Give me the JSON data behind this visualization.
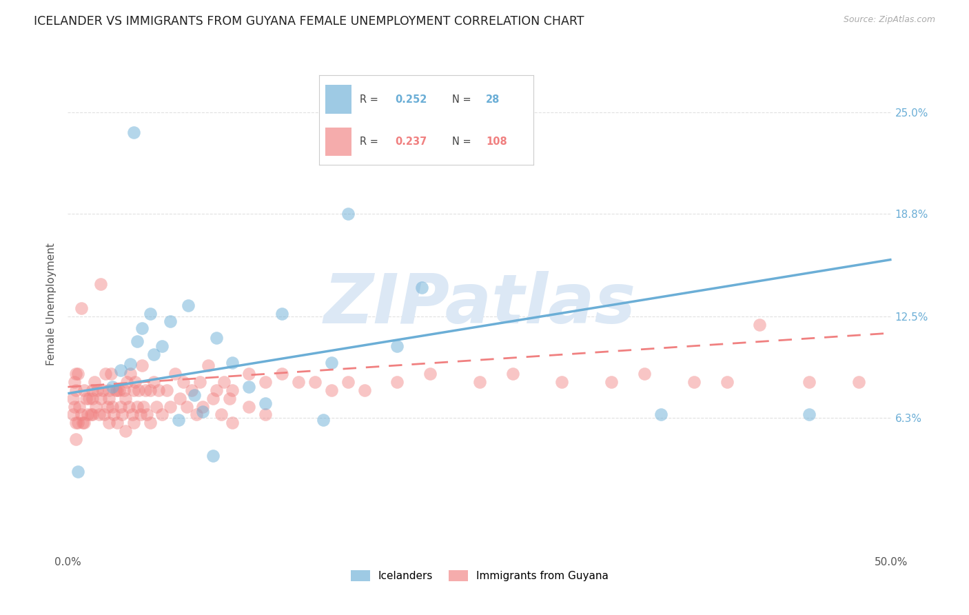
{
  "title": "ICELANDER VS IMMIGRANTS FROM GUYANA FEMALE UNEMPLOYMENT CORRELATION CHART",
  "source": "Source: ZipAtlas.com",
  "ylabel": "Female Unemployment",
  "xlim": [
    0.0,
    0.5
  ],
  "ylim": [
    -0.02,
    0.285
  ],
  "ytick_positions": [
    0.063,
    0.125,
    0.188,
    0.25
  ],
  "ytick_labels": [
    "6.3%",
    "12.5%",
    "18.8%",
    "25.0%"
  ],
  "series1_name": "Icelanders",
  "series1_color": "#6baed6",
  "series2_name": "Immigrants from Guyana",
  "series2_color": "#f08080",
  "watermark": "ZIPatlas",
  "watermark_color": "#dce8f5",
  "background_color": "#ffffff",
  "grid_color": "#cccccc",
  "blue_line": [
    0.0,
    0.5,
    0.078,
    0.16
  ],
  "pink_line": [
    0.0,
    0.5,
    0.082,
    0.115
  ],
  "icelanders_x": [
    0.04,
    0.17,
    0.215,
    0.36,
    0.045,
    0.05,
    0.042,
    0.038,
    0.057,
    0.062,
    0.052,
    0.032,
    0.027,
    0.073,
    0.09,
    0.1,
    0.13,
    0.16,
    0.2,
    0.11,
    0.12,
    0.082,
    0.067,
    0.077,
    0.155,
    0.088,
    0.45,
    0.006
  ],
  "icelanders_y": [
    0.238,
    0.188,
    0.143,
    0.065,
    0.118,
    0.127,
    0.11,
    0.096,
    0.107,
    0.122,
    0.102,
    0.092,
    0.082,
    0.132,
    0.112,
    0.097,
    0.127,
    0.097,
    0.107,
    0.082,
    0.072,
    0.067,
    0.062,
    0.077,
    0.062,
    0.04,
    0.065,
    0.03
  ],
  "guyana_x": [
    0.003,
    0.003,
    0.004,
    0.004,
    0.005,
    0.005,
    0.005,
    0.006,
    0.006,
    0.007,
    0.008,
    0.009,
    0.01,
    0.01,
    0.011,
    0.012,
    0.013,
    0.014,
    0.015,
    0.015,
    0.016,
    0.017,
    0.018,
    0.019,
    0.02,
    0.02,
    0.021,
    0.022,
    0.023,
    0.024,
    0.025,
    0.025,
    0.026,
    0.027,
    0.028,
    0.029,
    0.03,
    0.03,
    0.031,
    0.032,
    0.033,
    0.034,
    0.035,
    0.035,
    0.036,
    0.037,
    0.038,
    0.039,
    0.04,
    0.04,
    0.041,
    0.042,
    0.043,
    0.044,
    0.045,
    0.046,
    0.047,
    0.048,
    0.05,
    0.05,
    0.052,
    0.054,
    0.055,
    0.057,
    0.06,
    0.062,
    0.065,
    0.068,
    0.07,
    0.072,
    0.075,
    0.078,
    0.08,
    0.082,
    0.085,
    0.088,
    0.09,
    0.093,
    0.095,
    0.098,
    0.1,
    0.1,
    0.11,
    0.11,
    0.12,
    0.12,
    0.13,
    0.14,
    0.15,
    0.16,
    0.17,
    0.18,
    0.2,
    0.22,
    0.25,
    0.27,
    0.3,
    0.33,
    0.35,
    0.38,
    0.4,
    0.42,
    0.45,
    0.48,
    0.005,
    0.008,
    0.015,
    0.025
  ],
  "guyana_y": [
    0.075,
    0.065,
    0.085,
    0.07,
    0.06,
    0.08,
    0.05,
    0.09,
    0.06,
    0.07,
    0.13,
    0.06,
    0.08,
    0.06,
    0.075,
    0.065,
    0.075,
    0.065,
    0.075,
    0.065,
    0.085,
    0.07,
    0.08,
    0.065,
    0.145,
    0.075,
    0.08,
    0.065,
    0.09,
    0.07,
    0.08,
    0.06,
    0.09,
    0.07,
    0.065,
    0.08,
    0.08,
    0.06,
    0.08,
    0.07,
    0.065,
    0.08,
    0.075,
    0.055,
    0.085,
    0.07,
    0.09,
    0.065,
    0.08,
    0.06,
    0.085,
    0.07,
    0.08,
    0.065,
    0.095,
    0.07,
    0.08,
    0.065,
    0.08,
    0.06,
    0.085,
    0.07,
    0.08,
    0.065,
    0.08,
    0.07,
    0.09,
    0.075,
    0.085,
    0.07,
    0.08,
    0.065,
    0.085,
    0.07,
    0.095,
    0.075,
    0.08,
    0.065,
    0.085,
    0.075,
    0.08,
    0.06,
    0.09,
    0.07,
    0.085,
    0.065,
    0.09,
    0.085,
    0.085,
    0.08,
    0.085,
    0.08,
    0.085,
    0.09,
    0.085,
    0.09,
    0.085,
    0.085,
    0.09,
    0.085,
    0.085,
    0.12,
    0.085,
    0.085,
    0.09,
    0.065,
    0.08,
    0.075
  ]
}
